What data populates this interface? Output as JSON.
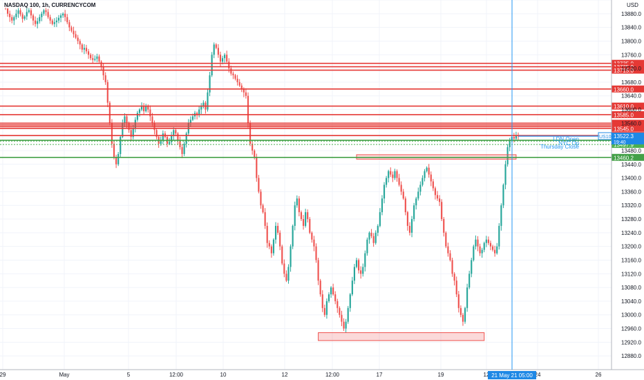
{
  "header": {
    "title": "NASDAQ 100, 1h, CURRENCYCOM"
  },
  "colors": {
    "up": "#26a69a",
    "down": "#ef5350",
    "resistance": "#e53935",
    "support": "#43a047",
    "crosshair": "#2196f3",
    "price_tag": "#1e88e5"
  },
  "chart_data": {
    "type": "candlestick",
    "title": "NASDAQ 100, 1h, CURRENCYCOM",
    "currency": "USD",
    "ylim": [
      12840,
      13920
    ],
    "y_ticks": [
      12880,
      12920,
      12960,
      13000,
      13040,
      13080,
      13120,
      13160,
      13200,
      13240,
      13280,
      13320,
      13360,
      13400,
      13440,
      13480,
      13520,
      13560,
      13600,
      13640,
      13680,
      13720,
      13760,
      13800,
      13840,
      13880,
      13920
    ],
    "y_tick_labels_shown": [
      "12880.0",
      "12920.0",
      "12960.0",
      "13000.0",
      "13040.0",
      "13080.0",
      "13120.0",
      "13160.0",
      "13200.0",
      "13240.0",
      "13280.0",
      "13320.0",
      "13360.0",
      "13400.0",
      "13440.0",
      "13480.0",
      "13520.0",
      "13560.0",
      "13600.0",
      "13640.0",
      "13680.0",
      "13720.0",
      "13760.0",
      "13800.0",
      "13840.0",
      "13880.0"
    ],
    "x_ticks": [
      "29",
      "May",
      "5",
      "12:00",
      "10",
      "12",
      "12:00",
      "17",
      "19",
      "12",
      "24",
      "26"
    ],
    "horizontal_levels": [
      {
        "value": 13735.0,
        "label": "13735.0",
        "kind": "resistance"
      },
      {
        "value": 13725.0,
        "label": "13725.0",
        "kind": "resistance"
      },
      {
        "value": 13715.0,
        "label": "13715.0",
        "kind": "resistance"
      },
      {
        "value": 13660.0,
        "label": "13660.0",
        "kind": "resistance"
      },
      {
        "value": 13610.0,
        "label": "13610.0",
        "kind": "resistance"
      },
      {
        "value": 13585.0,
        "label": "13585.0",
        "kind": "resistance"
      },
      {
        "value": 13560.0,
        "label": "13560.0",
        "kind": "resistance"
      },
      {
        "value": 13555.0,
        "label": "13555.0",
        "kind": "resistance"
      },
      {
        "value": 13550.0,
        "label": "13550.0",
        "kind": "resistance"
      },
      {
        "value": 13545.0,
        "label": "13545.0",
        "kind": "resistance"
      },
      {
        "value": 13524.0,
        "label": "13524.0",
        "kind": "resistance"
      },
      {
        "value": 13507.7,
        "label": "13507.7",
        "kind": "info"
      },
      {
        "value": 13510.0,
        "label": "13510.0",
        "kind": "support"
      },
      {
        "value": 13497.9,
        "label": "13497.9",
        "kind": "info"
      },
      {
        "value": 13460.2,
        "label": "13460.2",
        "kind": "support"
      }
    ],
    "current_price": {
      "symbol": "US100",
      "value": "13522.3",
      "time": "19:40"
    },
    "session_labels": [
      "LDN Open",
      "NYC Op",
      "Thursday Close"
    ],
    "crosshair_time": "21 May 21   05:00",
    "zones": [
      {
        "name": "resistance-zone",
        "y_from": 13455,
        "y_to": 13468,
        "from_bar": 165,
        "to_bar": 240
      },
      {
        "name": "demand-zone",
        "y_from": 12925,
        "y_to": 12948,
        "from_bar": 147,
        "to_bar": 225
      }
    ],
    "closes": [
      13895,
      13880,
      13870,
      13860,
      13870,
      13880,
      13890,
      13878,
      13865,
      13872,
      13885,
      13890,
      13875,
      13860,
      13850,
      13858,
      13870,
      13880,
      13890,
      13885,
      13870,
      13860,
      13850,
      13855,
      13860,
      13868,
      13875,
      13880,
      13870,
      13855,
      13840,
      13830,
      13820,
      13810,
      13800,
      13790,
      13775,
      13780,
      13770,
      13760,
      13750,
      13745,
      13748,
      13755,
      13740,
      13725,
      13700,
      13680,
      13620,
      13560,
      13500,
      13460,
      13440,
      13470,
      13520,
      13560,
      13580,
      13560,
      13540,
      13520,
      13545,
      13570,
      13590,
      13600,
      13610,
      13595,
      13610,
      13600,
      13580,
      13560,
      13540,
      13520,
      13500,
      13510,
      13530,
      13520,
      13500,
      13505,
      13525,
      13540,
      13530,
      13510,
      13490,
      13470,
      13500,
      13530,
      13560,
      13570,
      13580,
      13590,
      13585,
      13600,
      13610,
      13620,
      13600,
      13650,
      13700,
      13760,
      13790,
      13780,
      13760,
      13740,
      13750,
      13760,
      13740,
      13720,
      13705,
      13700,
      13690,
      13680,
      13670,
      13660,
      13650,
      13640,
      13560,
      13500,
      13480,
      13460,
      13400,
      13360,
      13320,
      13300,
      13260,
      13210,
      13200,
      13180,
      13220,
      13260,
      13240,
      13200,
      13150,
      13120,
      13100,
      13140,
      13200,
      13260,
      13320,
      13340,
      13300,
      13280,
      13260,
      13300,
      13280,
      13240,
      13220,
      13200,
      13160,
      13100,
      13060,
      13020,
      13000,
      13040,
      13060,
      13080,
      13060,
      13040,
      13020,
      13000,
      12980,
      12960,
      12980,
      13020,
      13060,
      13100,
      13140,
      13160,
      13130,
      13120,
      13140,
      13180,
      13220,
      13240,
      13230,
      13210,
      13240,
      13260,
      13300,
      13340,
      13380,
      13400,
      13420,
      13410,
      13400,
      13420,
      13400,
      13380,
      13360,
      13340,
      13300,
      13260,
      13240,
      13280,
      13320,
      13340,
      13360,
      13380,
      13400,
      13420,
      13430,
      13410,
      13390,
      13370,
      13350,
      13340,
      13330,
      13280,
      13240,
      13200,
      13180,
      13160,
      13120,
      13100,
      13060,
      13020,
      13000,
      12980,
      13020,
      13080,
      13120,
      13160,
      13200,
      13220,
      13200,
      13180,
      13190,
      13210,
      13220,
      13210,
      13200,
      13190,
      13180,
      13200,
      13260,
      13320,
      13380,
      13440,
      13490,
      13510,
      13520,
      13515,
      13525,
      13522
    ]
  }
}
